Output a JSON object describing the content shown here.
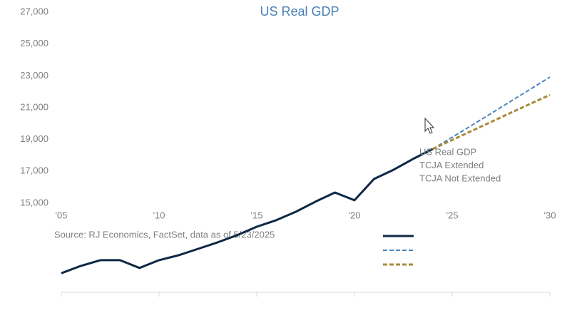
{
  "chart_data": {
    "type": "line",
    "title": "US Real GDP",
    "source": "Source: RJ Economics, FactSet, data as of 5/23/2025",
    "x": [
      2005,
      2006,
      2007,
      2008,
      2009,
      2010,
      2011,
      2012,
      2013,
      2014,
      2015,
      2016,
      2017,
      2018,
      2019,
      2020,
      2021,
      2022,
      2023,
      2024,
      2025,
      2026,
      2027,
      2028,
      2029,
      2030
    ],
    "xlim": [
      2005,
      2030
    ],
    "xticks": [
      {
        "value": 2005,
        "label": "'05"
      },
      {
        "value": 2010,
        "label": "'10"
      },
      {
        "value": 2015,
        "label": "'15"
      },
      {
        "value": 2020,
        "label": "'20"
      },
      {
        "value": 2025,
        "label": "'25"
      },
      {
        "value": 2030,
        "label": "'30"
      }
    ],
    "ylim": [
      9400,
      27000
    ],
    "yticks": [
      {
        "value": 15000,
        "label": "15,000"
      },
      {
        "value": 17000,
        "label": "17,000"
      },
      {
        "value": 19000,
        "label": "19,000"
      },
      {
        "value": 21000,
        "label": "21,000"
      },
      {
        "value": 23000,
        "label": "23,000"
      },
      {
        "value": 25000,
        "label": "25,000"
      },
      {
        "value": 27000,
        "label": "27,000"
      }
    ],
    "grid": false,
    "series": [
      {
        "name": "US Real GDP",
        "color": "#0d2847",
        "dashed": false,
        "values": [
          10600,
          11060,
          11420,
          11420,
          10930,
          11420,
          11730,
          12130,
          12540,
          12990,
          13520,
          13930,
          14460,
          15090,
          15670,
          15180,
          16520,
          17100,
          17780,
          18400,
          null,
          null,
          null,
          null,
          null,
          null
        ]
      },
      {
        "name": "TCJA Extended",
        "color": "#4a86c0",
        "dashed": true,
        "values": [
          null,
          null,
          null,
          null,
          null,
          null,
          null,
          null,
          null,
          null,
          null,
          null,
          null,
          null,
          null,
          null,
          null,
          null,
          null,
          18400,
          19140,
          19890,
          20640,
          21400,
          22160,
          22920
        ]
      },
      {
        "name": "TCJA Not Extended",
        "color": "#a88b3c",
        "dashed": true,
        "values": [
          null,
          null,
          null,
          null,
          null,
          null,
          null,
          null,
          null,
          null,
          null,
          null,
          null,
          null,
          null,
          null,
          null,
          null,
          null,
          18400,
          18970,
          19540,
          20110,
          20680,
          21240,
          21800
        ]
      }
    ]
  }
}
